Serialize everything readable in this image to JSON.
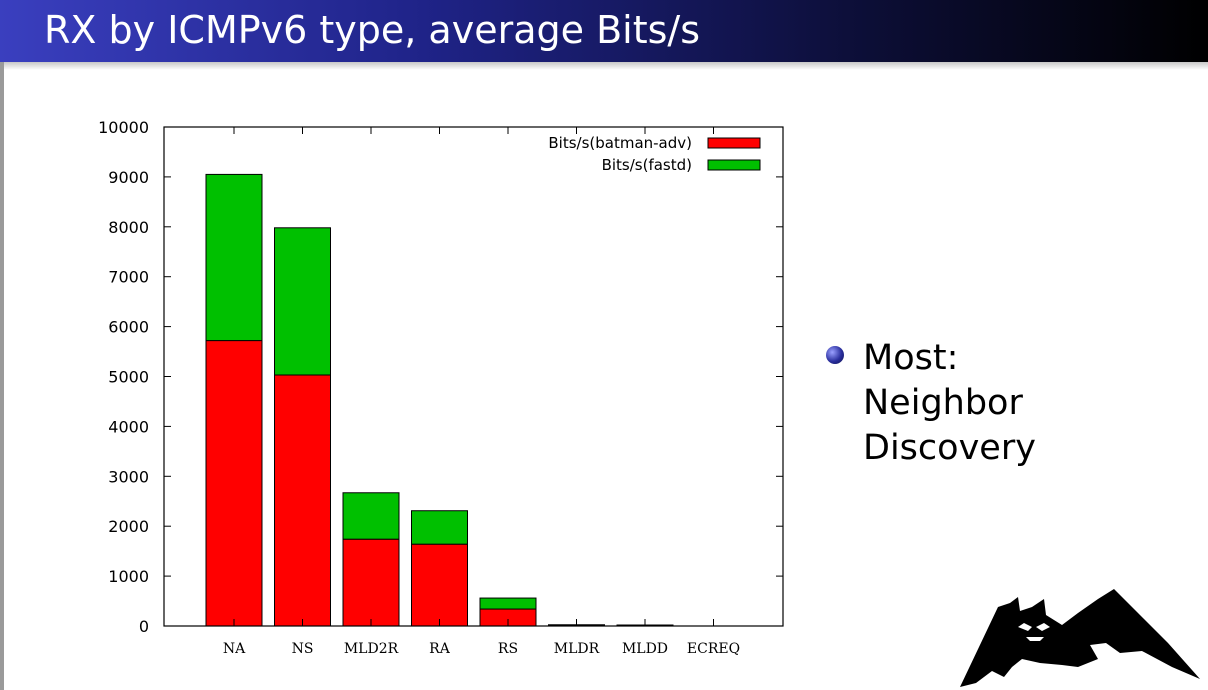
{
  "slide": {
    "title": "RX by ICMPv6 type, average Bits/s",
    "bullet_lines": [
      "Most:",
      "Neighbor",
      "Discovery"
    ]
  },
  "chart_data": {
    "type": "bar",
    "stacked": true,
    "title": "",
    "xlabel": "",
    "ylabel": "",
    "categories": [
      "NA",
      "NS",
      "MLD2R",
      "RA",
      "RS",
      "MLDR",
      "MLDD",
      "ECREQ"
    ],
    "series": [
      {
        "name": "Bits/s(batman-adv)",
        "color": "#ff0000",
        "values": [
          5720,
          5030,
          1740,
          1640,
          340,
          20,
          15,
          0
        ]
      },
      {
        "name": "Bits/s(fastd)",
        "color": "#00c000",
        "values": [
          3330,
          2950,
          930,
          670,
          220,
          5,
          5,
          0
        ]
      }
    ],
    "ylim": [
      0,
      10000
    ],
    "yticks": [
      0,
      1000,
      2000,
      3000,
      4000,
      5000,
      6000,
      7000,
      8000,
      9000,
      10000
    ],
    "grid": false,
    "legend_position": "top-right"
  }
}
